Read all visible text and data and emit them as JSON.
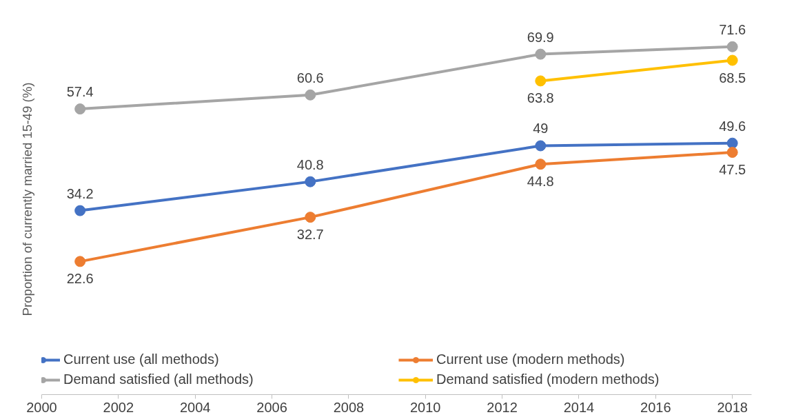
{
  "chart_data": {
    "type": "line",
    "ylabel": "Proportion of currently married 15-49 (%)",
    "x": [
      2001,
      2007,
      2013,
      2018
    ],
    "series": [
      {
        "name": "Current use (all methods)",
        "color": "#4472c4",
        "values": [
          34.2,
          40.8,
          49,
          49.6
        ]
      },
      {
        "name": "Current use (modern methods)",
        "color": "#ed7d31",
        "values": [
          22.6,
          32.7,
          44.8,
          47.5
        ]
      },
      {
        "name": "Demand satisfied (all methods)",
        "color": "#a5a5a5",
        "values": [
          57.4,
          60.6,
          69.9,
          71.6
        ]
      },
      {
        "name": "Demand satisfied (modern methods)",
        "color": "#ffc000",
        "values": [
          null,
          null,
          63.8,
          68.5
        ]
      }
    ],
    "xlim": [
      2000,
      2018.5
    ],
    "xticks": [
      2000,
      2002,
      2004,
      2006,
      2008,
      2010,
      2012,
      2014,
      2016,
      2018
    ],
    "tick_labels": "x",
    "data_labels": true,
    "legend": "bottom",
    "marker": "circle",
    "grid": false
  }
}
